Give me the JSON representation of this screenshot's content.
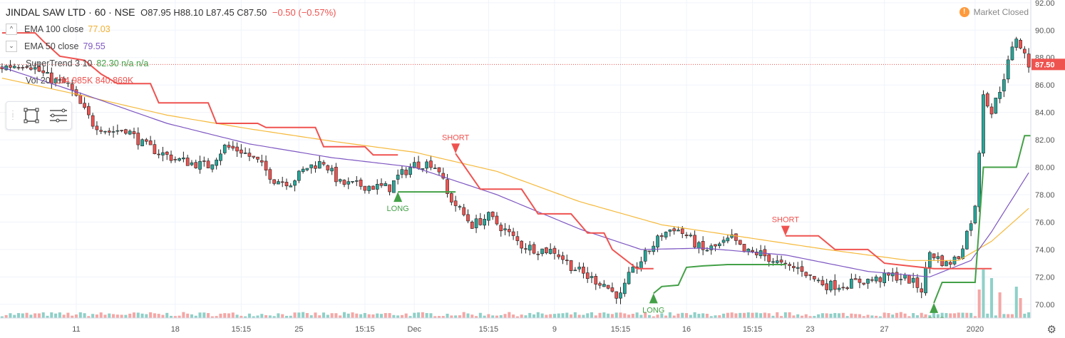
{
  "header": {
    "symbol": "JINDAL SAW LTD · 60 · NSE",
    "ohlc": "O87.95  H88.10  L87.45  C87.50",
    "change": "−0.50 (−0.57%)"
  },
  "legend": [
    {
      "toggle": "^",
      "name": "EMA 100 close",
      "values": "77.03",
      "color": "#f0b030"
    },
    {
      "toggle": "⌄",
      "name": "EMA 50 close",
      "values": "79.55",
      "color": "#7e57c2"
    },
    {
      "toggle": "",
      "name": "SuperTrend 3 10",
      "values": "82.30  n/a  n/a",
      "color": "#43a047"
    },
    {
      "toggle": "",
      "name": "Vol 20",
      "values": "184.985K  840.869K",
      "color": "#ef5350"
    }
  ],
  "market_status": {
    "icon": "exclamation-icon",
    "label": "Market Closed"
  },
  "toolbox": {
    "icons": [
      "grip-icon",
      "rectangle-select-icon",
      "list-lines-icon"
    ]
  },
  "settings_icon": "⚙",
  "colors": {
    "up": "#26a69a",
    "down": "#ef5350",
    "ema100": "#f6b93b",
    "ema50": "#7e57c2",
    "st_up": "#43a047",
    "st_down": "#ef5350",
    "last_price": "#ef5350"
  },
  "chart_data": {
    "type": "candlestick",
    "ylim": [
      69.0,
      92.2
    ],
    "yticks": [
      "70.00",
      "72.00",
      "74.00",
      "76.00",
      "78.00",
      "80.00",
      "82.00",
      "84.00",
      "86.00",
      "88.00",
      "90.00",
      "92.00"
    ],
    "last_price": "87.50",
    "x_ticks": [
      "11",
      "18",
      "15:15",
      "25",
      "15:15",
      "Dec",
      "15:15",
      "9",
      "15:15",
      "16",
      "15:15",
      "23",
      "27",
      "2020"
    ],
    "x_tick_bars": [
      18,
      42,
      58,
      72,
      88,
      100,
      118,
      134,
      150,
      166,
      182,
      196,
      214,
      236
    ],
    "n_bars": 250,
    "close_anchors": [
      [
        0,
        87.3
      ],
      [
        6,
        87.6
      ],
      [
        12,
        86.4
      ],
      [
        16,
        86.0
      ],
      [
        18,
        85.0
      ],
      [
        22,
        83.2
      ],
      [
        26,
        82.6
      ],
      [
        30,
        82.8
      ],
      [
        34,
        81.7
      ],
      [
        38,
        81.1
      ],
      [
        42,
        80.6
      ],
      [
        46,
        80.3
      ],
      [
        50,
        80.1
      ],
      [
        54,
        81.5
      ],
      [
        58,
        81.2
      ],
      [
        62,
        80.4
      ],
      [
        66,
        79.1
      ],
      [
        70,
        78.9
      ],
      [
        74,
        80.0
      ],
      [
        78,
        80.4
      ],
      [
        82,
        78.8
      ],
      [
        86,
        78.7
      ],
      [
        90,
        78.6
      ],
      [
        94,
        78.5
      ],
      [
        96,
        79.3
      ],
      [
        100,
        80.2
      ],
      [
        104,
        80.3
      ],
      [
        106,
        79.8
      ],
      [
        108,
        78.0
      ],
      [
        112,
        76.5
      ],
      [
        114,
        75.8
      ],
      [
        118,
        76.4
      ],
      [
        122,
        75.4
      ],
      [
        126,
        74.3
      ],
      [
        130,
        74.0
      ],
      [
        134,
        73.9
      ],
      [
        138,
        72.8
      ],
      [
        142,
        72.0
      ],
      [
        146,
        71.5
      ],
      [
        148,
        70.9
      ],
      [
        150,
        70.6
      ],
      [
        152,
        72.0
      ],
      [
        154,
        72.8
      ],
      [
        156,
        73.6
      ],
      [
        160,
        75.1
      ],
      [
        163,
        75.6
      ],
      [
        166,
        75.0
      ],
      [
        170,
        73.9
      ],
      [
        174,
        74.3
      ],
      [
        177,
        74.8
      ],
      [
        180,
        73.8
      ],
      [
        184,
        73.7
      ],
      [
        187,
        73.2
      ],
      [
        190,
        72.7
      ],
      [
        194,
        72.6
      ],
      [
        196,
        72.0
      ],
      [
        200,
        71.4
      ],
      [
        204,
        71.4
      ],
      [
        208,
        71.7
      ],
      [
        212,
        71.8
      ],
      [
        216,
        72.1
      ],
      [
        220,
        71.8
      ],
      [
        223,
        71.1
      ],
      [
        225,
        73.8
      ],
      [
        229,
        72.9
      ],
      [
        232,
        73.5
      ],
      [
        236,
        77.0
      ],
      [
        238,
        85.5
      ],
      [
        240,
        84.0
      ],
      [
        242,
        85.7
      ],
      [
        246,
        89.5
      ],
      [
        249,
        87.5
      ]
    ],
    "ema100_anchors": [
      [
        0,
        86.5
      ],
      [
        20,
        85.2
      ],
      [
        40,
        83.8
      ],
      [
        60,
        82.8
      ],
      [
        80,
        81.9
      ],
      [
        100,
        81.1
      ],
      [
        120,
        79.7
      ],
      [
        140,
        77.5
      ],
      [
        160,
        75.8
      ],
      [
        180,
        74.9
      ],
      [
        200,
        74.0
      ],
      [
        220,
        73.2
      ],
      [
        232,
        73.2
      ],
      [
        240,
        74.6
      ],
      [
        249,
        77.0
      ]
    ],
    "ema50_anchors": [
      [
        0,
        87.3
      ],
      [
        20,
        85.3
      ],
      [
        40,
        83.2
      ],
      [
        60,
        81.7
      ],
      [
        80,
        80.7
      ],
      [
        100,
        80.0
      ],
      [
        120,
        78.0
      ],
      [
        140,
        75.5
      ],
      [
        155,
        74.0
      ],
      [
        170,
        74.1
      ],
      [
        190,
        73.6
      ],
      [
        210,
        72.4
      ],
      [
        225,
        72.0
      ],
      [
        235,
        73.2
      ],
      [
        240,
        75.3
      ],
      [
        249,
        79.6
      ]
    ],
    "supertrend_segments": [
      {
        "dir": "down",
        "points": [
          [
            0,
            89.8
          ],
          [
            8,
            89.8
          ],
          [
            10,
            89.2
          ],
          [
            14,
            88.1
          ],
          [
            20,
            87.8
          ],
          [
            24,
            86.8
          ],
          [
            28,
            86.1
          ],
          [
            36,
            86.1
          ],
          [
            38,
            84.7
          ],
          [
            50,
            84.7
          ],
          [
            52,
            83.2
          ],
          [
            62,
            83.2
          ],
          [
            64,
            82.9
          ],
          [
            76,
            82.9
          ],
          [
            78,
            81.5
          ],
          [
            88,
            81.5
          ],
          [
            90,
            80.9
          ],
          [
            96,
            80.9
          ]
        ]
      },
      {
        "dir": "up",
        "points": [
          [
            96,
            78.2
          ],
          [
            110,
            78.2
          ]
        ]
      },
      {
        "dir": "down",
        "points": [
          [
            110,
            81.0
          ],
          [
            116,
            78.4
          ],
          [
            126,
            78.4
          ],
          [
            130,
            76.6
          ],
          [
            138,
            76.6
          ],
          [
            142,
            75.2
          ],
          [
            146,
            75.2
          ],
          [
            148,
            74.0
          ],
          [
            154,
            72.6
          ],
          [
            158,
            72.6
          ]
        ]
      },
      {
        "dir": "up",
        "points": [
          [
            158,
            70.8
          ],
          [
            160,
            71.3
          ],
          [
            164,
            71.4
          ],
          [
            166,
            72.7
          ],
          [
            170,
            72.8
          ],
          [
            176,
            72.9
          ],
          [
            190,
            72.9
          ]
        ]
      },
      {
        "dir": "down",
        "points": [
          [
            190,
            75.0
          ],
          [
            198,
            75.0
          ],
          [
            202,
            74.0
          ],
          [
            210,
            74.0
          ],
          [
            214,
            73.0
          ],
          [
            226,
            72.6
          ],
          [
            240,
            72.6
          ]
        ]
      },
      {
        "dir": "up",
        "points": [
          [
            226,
            70.1
          ],
          [
            228,
            71.6
          ],
          [
            236,
            71.6
          ],
          [
            238,
            80.0
          ],
          [
            246,
            80.0
          ],
          [
            248,
            82.3
          ],
          [
            250,
            82.3
          ]
        ]
      }
    ],
    "signals": [
      {
        "type": "LONG",
        "bar": 96,
        "price": 78.2
      },
      {
        "type": "SHORT",
        "bar": 110,
        "price": 81.0
      },
      {
        "type": "LONG",
        "bar": 158,
        "price": 70.8
      },
      {
        "type": "SHORT",
        "bar": 190,
        "price": 75.0
      },
      {
        "type": "LONG",
        "bar": 226,
        "price": 70.1
      }
    ],
    "signal_labels": {
      "long": "LONG",
      "short": "SHORT"
    },
    "volume_spikes": [
      [
        237,
        20
      ],
      [
        238,
        34
      ],
      [
        240,
        28
      ],
      [
        242,
        18
      ],
      [
        246,
        22
      ],
      [
        247,
        14
      ]
    ],
    "volume_base": 3
  }
}
